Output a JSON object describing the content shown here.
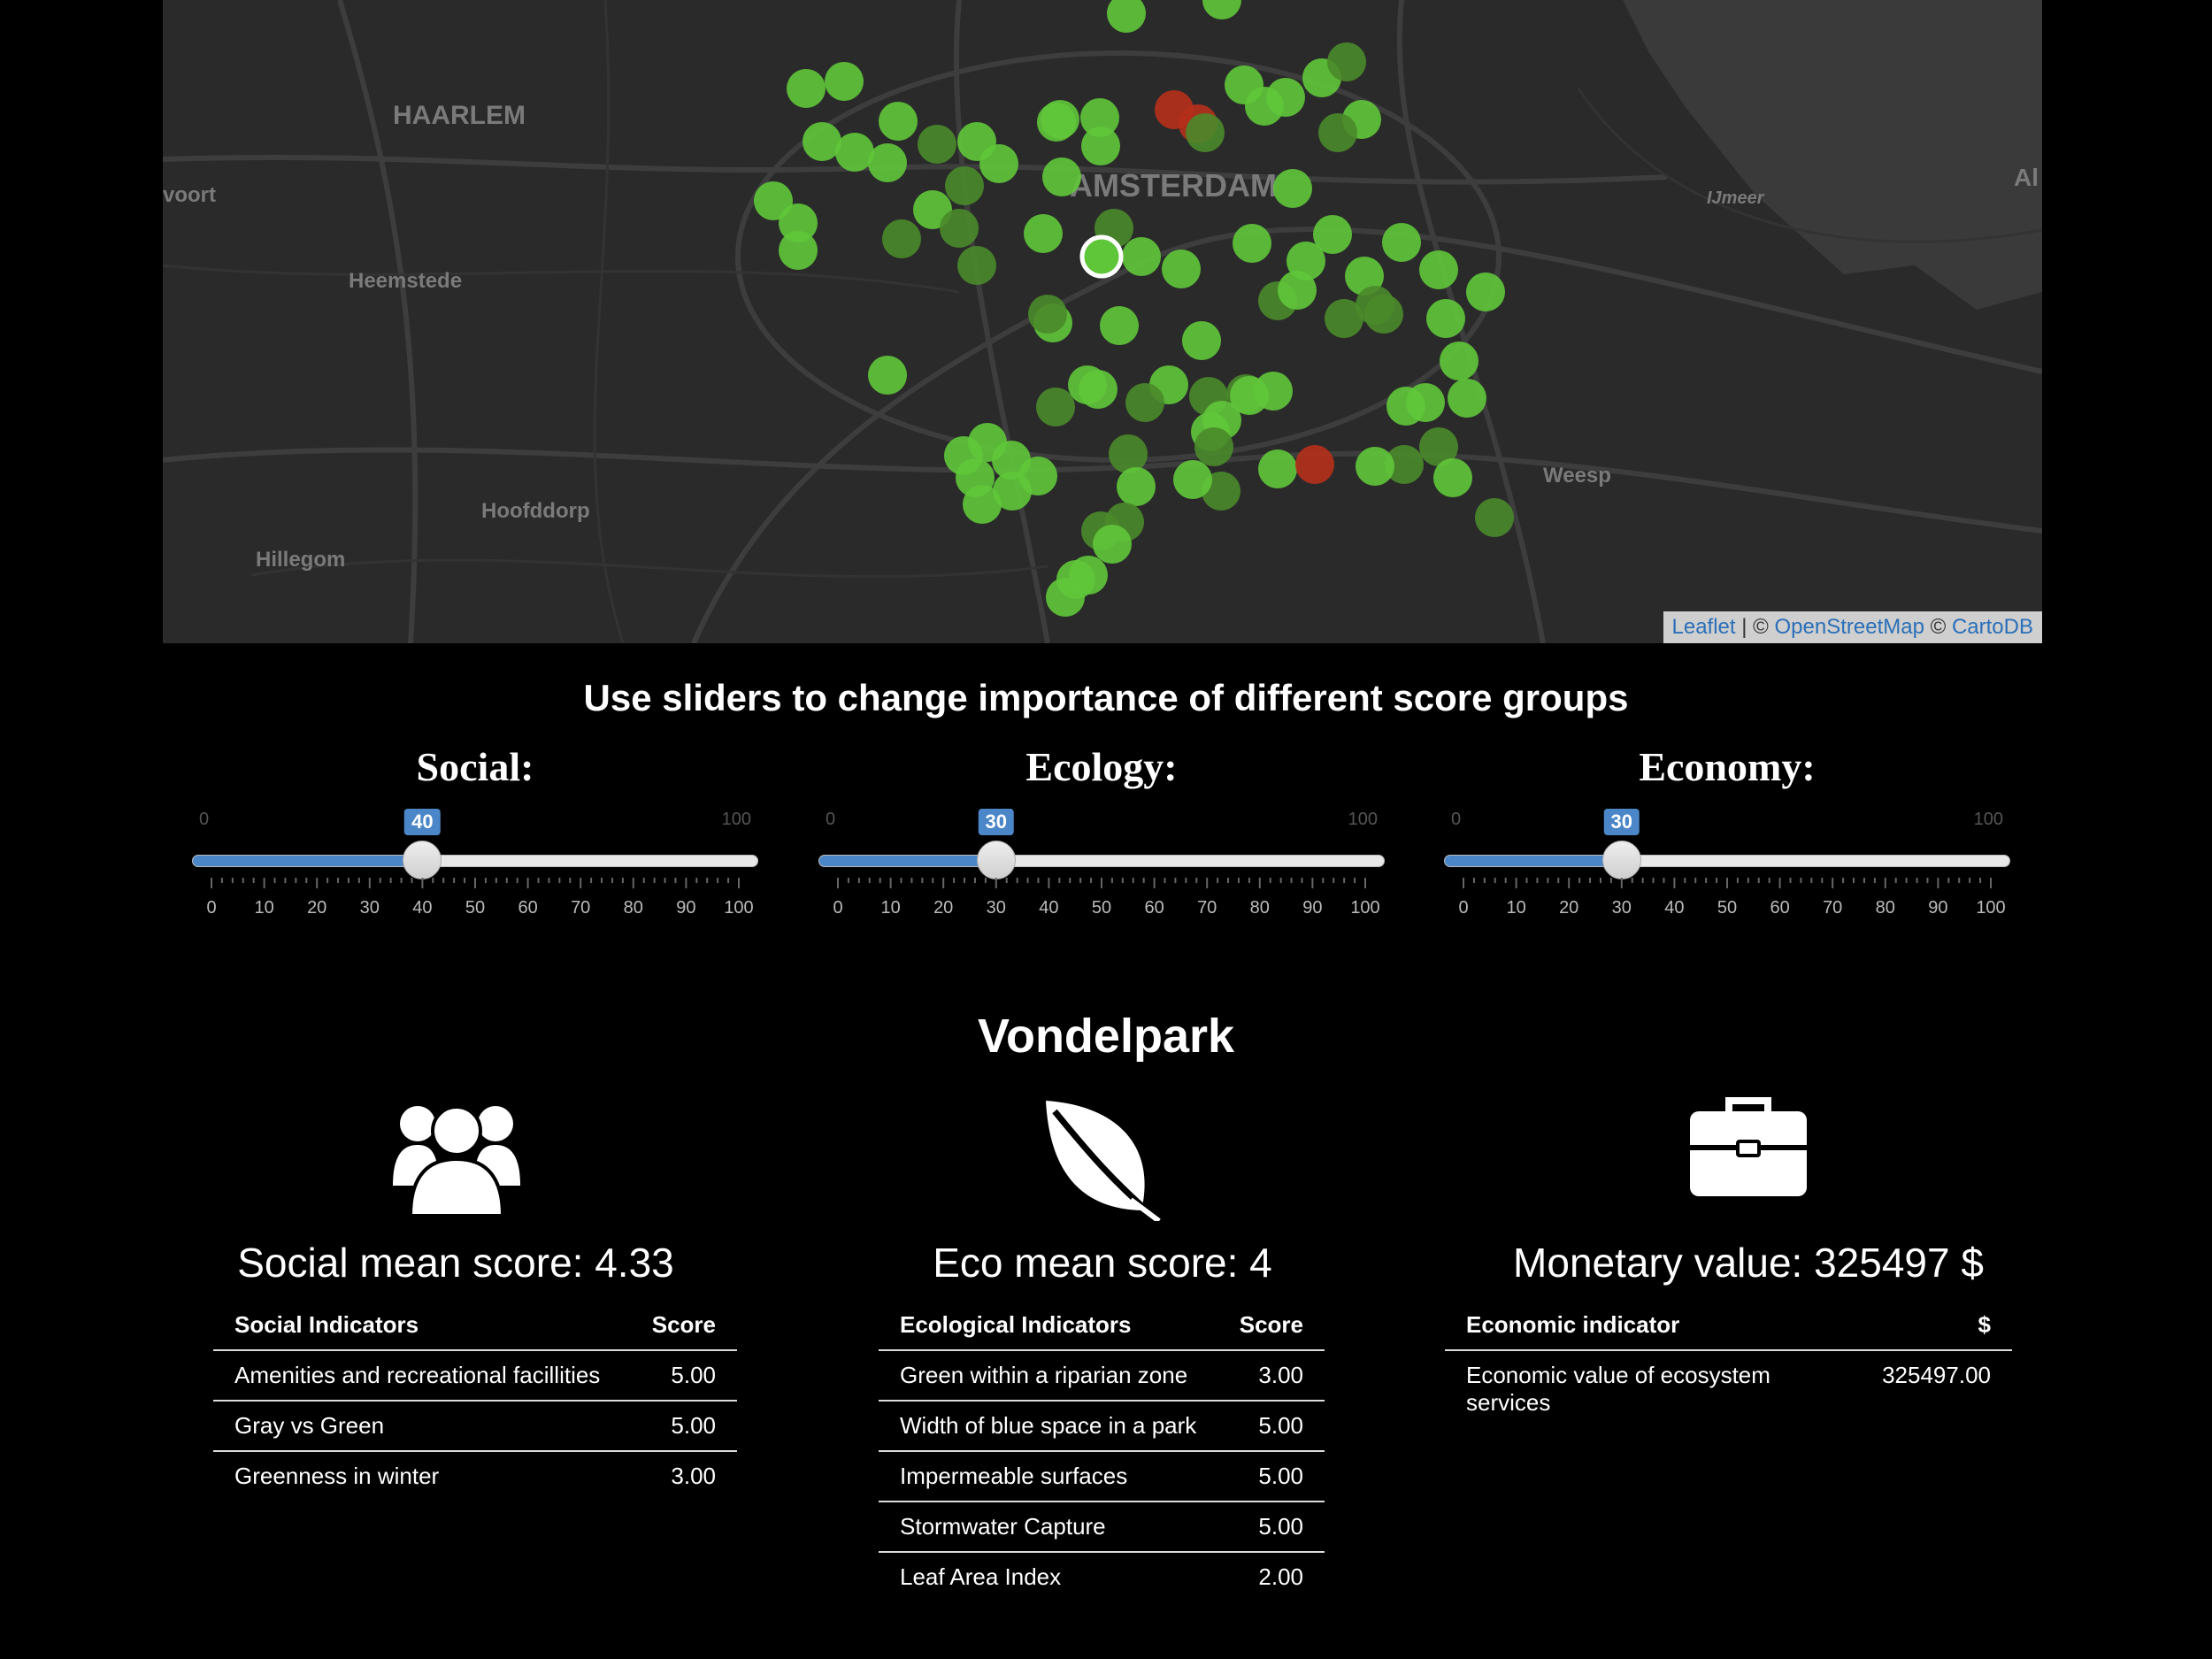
{
  "map": {
    "place_labels": [
      "HAARLEM",
      "AMSTERDAM",
      "Heemstede",
      "Hoofddorp",
      "Hillegom",
      "Weesp",
      "IJmeer",
      "voort",
      "Al"
    ],
    "attribution": {
      "leaflet": "Leaflet",
      "sep1": " | © ",
      "osm": "OpenStreetMap",
      "sep2": " © ",
      "carto": "CartoDB"
    }
  },
  "sliders_title": "Use sliders to change importance of different score groups",
  "sliders": [
    {
      "label": "Social:",
      "value": 40,
      "min": 0,
      "max": 100,
      "ticks": [
        "0",
        "10",
        "20",
        "30",
        "40",
        "50",
        "60",
        "70",
        "80",
        "90",
        "100"
      ]
    },
    {
      "label": "Ecology:",
      "value": 30,
      "min": 0,
      "max": 100,
      "ticks": [
        "0",
        "10",
        "20",
        "30",
        "40",
        "50",
        "60",
        "70",
        "80",
        "90",
        "100"
      ]
    },
    {
      "label": "Economy:",
      "value": 30,
      "min": 0,
      "max": 100,
      "ticks": [
        "0",
        "10",
        "20",
        "30",
        "40",
        "50",
        "60",
        "70",
        "80",
        "90",
        "100"
      ]
    }
  ],
  "park_name": "Vondelpark",
  "social": {
    "score_title": "Social mean score: 4.33",
    "header": [
      "Social Indicators",
      "Score"
    ],
    "rows": [
      [
        "Amenities and recreational facillities",
        "5.00"
      ],
      [
        "Gray vs Green",
        "5.00"
      ],
      [
        "Greenness in winter",
        "3.00"
      ]
    ]
  },
  "eco": {
    "score_title": "Eco mean score: 4",
    "header": [
      "Ecological Indicators",
      "Score"
    ],
    "rows": [
      [
        "Green within a riparian zone",
        "3.00"
      ],
      [
        "Width of blue space in a park",
        "5.00"
      ],
      [
        "Impermeable surfaces",
        "5.00"
      ],
      [
        "Stormwater Capture",
        "5.00"
      ],
      [
        "Leaf Area Index",
        "2.00"
      ]
    ]
  },
  "economy": {
    "score_title": "Monetary value: 325497 $",
    "header": [
      "Economic indicator",
      "$"
    ],
    "rows": [
      [
        "Economic value of ecosystem services",
        "325497.00"
      ]
    ]
  },
  "icons": {
    "social": "users-icon",
    "eco": "leaf-icon",
    "economy": "briefcase-icon"
  },
  "colors": {
    "accent": "#4a86c8",
    "marker_green": "#5fc63a",
    "marker_dark_green": "#4a8a2a",
    "marker_red": "#b5301a"
  }
}
